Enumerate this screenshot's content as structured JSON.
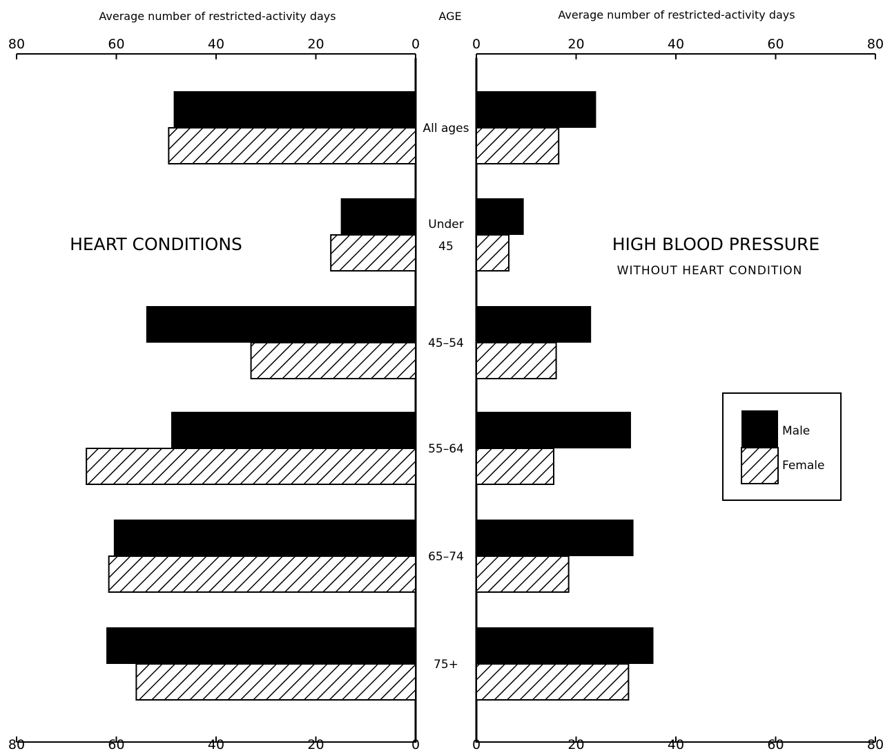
{
  "chart_data": {
    "type": "bar",
    "header": {
      "left_axis_title": "Average number of restricted-activity days",
      "right_axis_title": "Average number of restricted-activity days",
      "category_title": "AGE"
    },
    "categories": [
      [
        "All ages"
      ],
      [
        "Under",
        "45"
      ],
      [
        "45–54"
      ],
      [
        "55–64"
      ],
      [
        "65–74"
      ],
      [
        "75+"
      ]
    ],
    "xlim": [
      0,
      80
    ],
    "ticks": [
      0,
      20,
      40,
      60,
      80
    ],
    "legend": {
      "position": "right",
      "male_label": "Male",
      "female_label": "Female"
    },
    "panels": [
      {
        "id": "heart",
        "title": "HEART CONDITIONS",
        "subtitle": "",
        "direction": "leftward",
        "series": [
          {
            "name": "Male",
            "style": "solid",
            "values": [
              48.5,
              15,
              54,
              49,
              60.5,
              62
            ]
          },
          {
            "name": "Female",
            "style": "hatched",
            "values": [
              49.5,
              17,
              33,
              66,
              61.5,
              56
            ]
          }
        ]
      },
      {
        "id": "hbp",
        "title": "HIGH BLOOD PRESSURE",
        "subtitle": "WITHOUT HEART CONDITION",
        "direction": "rightward",
        "series": [
          {
            "name": "Male",
            "style": "solid",
            "values": [
              24,
              9.5,
              23,
              31,
              31.5,
              35.5
            ]
          },
          {
            "name": "Female",
            "style": "hatched",
            "values": [
              16.5,
              6.5,
              16,
              15.5,
              18.5,
              30.5
            ]
          }
        ]
      }
    ]
  }
}
